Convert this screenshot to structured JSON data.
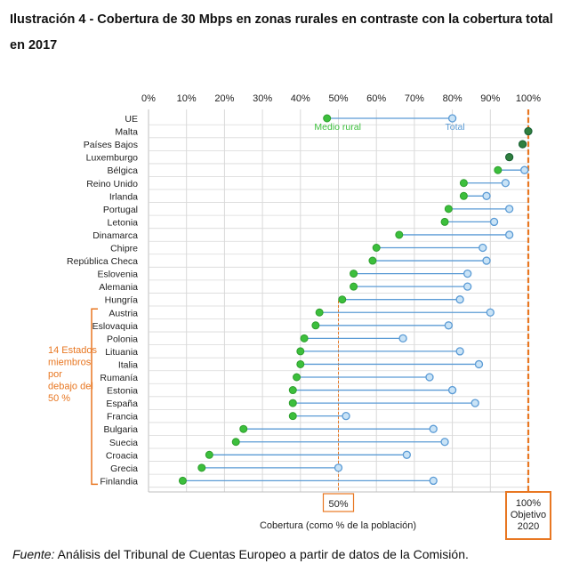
{
  "title": "Ilustración 4 - Cobertura de 30 Mbps en zonas rurales en contraste con la cobertura total en 2017",
  "source": {
    "label": "Fuente:",
    "text": " Análisis del Tribunal de Cuentas Europeo a partir de datos de la Comisión."
  },
  "chart_data": {
    "type": "scatter",
    "subtype": "dumbbell",
    "title": "",
    "xlabel": "Cobertura (como % de la población)",
    "xlim": [
      0,
      100
    ],
    "x_ticks": [
      "0%",
      "10%",
      "20%",
      "30%",
      "40%",
      "50%",
      "60%",
      "70%",
      "80%",
      "90%",
      "100%"
    ],
    "grid": "vertical",
    "categories": [
      "UE",
      "Malta",
      "Países Bajos",
      "Luxemburgo",
      "Bélgica",
      "Reino Unido",
      "Irlanda",
      "Portugal",
      "Letonia",
      "Dinamarca",
      "Chipre",
      "República Checa",
      "Eslovenia",
      "Alemania",
      "Hungría",
      "Austria",
      "Eslovaquia",
      "Polonia",
      "Lituania",
      "Italia",
      "Rumanía",
      "Estonia",
      "España",
      "Francia",
      "Bulgaria",
      "Suecia",
      "Croacia",
      "Grecia",
      "Finlandia"
    ],
    "series": [
      {
        "name": "Medio rural",
        "color": "#3cbf3c",
        "values": [
          47,
          100,
          98.5,
          95,
          92,
          83,
          83,
          79,
          78,
          66,
          60,
          59,
          54,
          54,
          51,
          45,
          44,
          41,
          40,
          40,
          39,
          38,
          38,
          38,
          25,
          23,
          16,
          14,
          9
        ]
      },
      {
        "name": "Total",
        "color": "#5b9bd5",
        "values": [
          80,
          100,
          98.5,
          95,
          99,
          94,
          89,
          95,
          91,
          95,
          88,
          89,
          84,
          84,
          82,
          90,
          79,
          67,
          82,
          87,
          74,
          80,
          86,
          52,
          75,
          78,
          68,
          50,
          75
        ]
      }
    ],
    "annotations": {
      "group_label": "14 Estados miembros por debajo del 50 %",
      "target_label": "100% Objetivo 2020",
      "reference_label": "50%",
      "reference_line": 50,
      "target_line": 100
    },
    "colors": {
      "rural": "#3cbf3c",
      "total_fill": "#c9e3f6",
      "total_stroke": "#5b9bd5",
      "accent": "#e87722",
      "connector": "#5b9bd5"
    }
  }
}
